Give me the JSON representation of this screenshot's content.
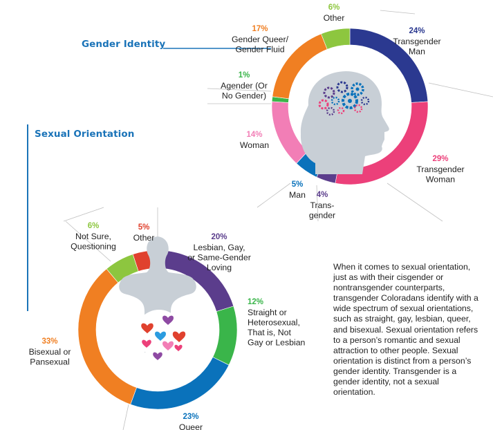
{
  "sections": {
    "gender_identity_title": "Gender Identity",
    "sexual_orientation_title": "Sexual Orientation"
  },
  "body_text": "When it comes to sexual orientation, just as with their cisgender or nontransgender counterparts, transgender Coloradans identify with a wide spectrum of sexual orientations, such as straight, gay, lesbian, queer, and bisexual. Sexual orientation refers to a person’s romantic and sexual attraction to other people. Sexual orientation is distinct from a person’s gender identity. Transgender is a gender identity, not a sexual orientation.",
  "icons": {
    "gender_center": "head-with-gears-icon",
    "orientation_center": "body-with-hearts-icon"
  },
  "chart_data": [
    {
      "type": "pie",
      "donut": true,
      "title": "Gender Identity",
      "slices": [
        {
          "name": "Transgender Man",
          "pct_label": "24%",
          "value": 24,
          "lines": [
            "Transgender",
            "Man"
          ],
          "color": "#2b3990"
        },
        {
          "name": "Transgender Woman",
          "pct_label": "29%",
          "value": 29,
          "lines": [
            "Transgender",
            "Woman"
          ],
          "color": "#ec407a"
        },
        {
          "name": "Trans-gender",
          "pct_label": "4%",
          "value": 4,
          "lines": [
            "Trans-",
            "gender"
          ],
          "color": "#5b3d8c"
        },
        {
          "name": "Man",
          "pct_label": "5%",
          "value": 5,
          "lines": [
            "Man"
          ],
          "color": "#0a72bb"
        },
        {
          "name": "Woman",
          "pct_label": "14%",
          "value": 14,
          "lines": [
            "Woman"
          ],
          "color": "#f27eb6"
        },
        {
          "name": "Agender (Or No Gender)",
          "pct_label": "1%",
          "value": 1,
          "lines": [
            "Agender (Or",
            "No Gender)"
          ],
          "color": "#3ab54a"
        },
        {
          "name": "Gender Queer/ Gender Fluid",
          "pct_label": "17%",
          "value": 17,
          "lines": [
            "Gender Queer/",
            "Gender Fluid"
          ],
          "color": "#f07f22"
        },
        {
          "name": "Other",
          "pct_label": "6%",
          "value": 6,
          "lines": [
            "Other"
          ],
          "color": "#8dc63f"
        }
      ]
    },
    {
      "type": "pie",
      "donut": true,
      "title": "Sexual Orientation",
      "slices": [
        {
          "name": "Lesbian, Gay, or Same-Gender Loving",
          "pct_label": "20%",
          "value": 20,
          "lines": [
            "Lesbian, Gay,",
            "or Same-Gender",
            "Loving"
          ],
          "color": "#5b3d8c"
        },
        {
          "name": "Straight or Heterosexual, That is, Not Gay or Lesbian",
          "pct_label": "12%",
          "value": 12,
          "lines": [
            "Straight or",
            "Heterosexual,",
            "That is, Not",
            "Gay or Lesbian"
          ],
          "color": "#3ab54a"
        },
        {
          "name": "Queer",
          "pct_label": "23%",
          "value": 23,
          "lines": [
            "Queer"
          ],
          "color": "#0a72bb"
        },
        {
          "name": "Bisexual or Pansexual",
          "pct_label": "33%",
          "value": 33,
          "lines": [
            "Bisexual or",
            "Pansexual"
          ],
          "color": "#f07f22"
        },
        {
          "name": "Not Sure, Questioning",
          "pct_label": "6%",
          "value": 6,
          "lines": [
            "Not Sure,",
            "Questioning"
          ],
          "color": "#8dc63f"
        },
        {
          "name": "Other",
          "pct_label": "5%",
          "value": 5,
          "lines": [
            "Other"
          ],
          "color": "#e0412e"
        }
      ]
    }
  ]
}
